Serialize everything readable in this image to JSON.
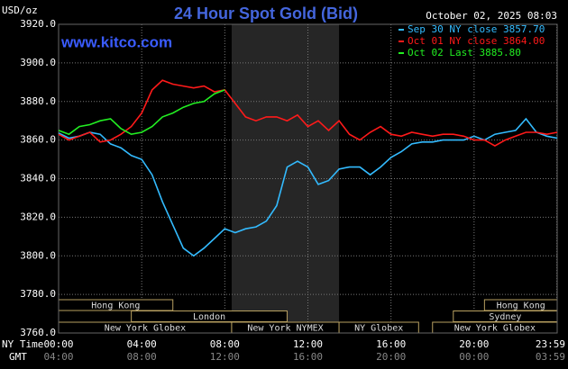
{
  "chart_data": {
    "type": "line",
    "title": "24 Hour Spot Gold (Bid)",
    "y_label": "USD/oz",
    "timestamp": "October 02, 2025 08:03",
    "site": "www.kitco.com",
    "ylim": [
      3760,
      3920
    ],
    "yticks": [
      {
        "value": 3760,
        "label": "3760.0"
      },
      {
        "value": 3780,
        "label": "3780.0"
      },
      {
        "value": 3800,
        "label": "3800.0"
      },
      {
        "value": 3820,
        "label": "3820.0"
      },
      {
        "value": 3840,
        "label": "3840.0"
      },
      {
        "value": 3860,
        "label": "3860.0"
      },
      {
        "value": 3880,
        "label": "3880.0"
      },
      {
        "value": 3900,
        "label": "3900.0"
      },
      {
        "value": 3920,
        "label": "3920.0"
      }
    ],
    "xlim": [
      0,
      24
    ],
    "x_row_label": "NY Time",
    "xticks": [
      {
        "value": 0,
        "label": "00:00"
      },
      {
        "value": 4,
        "label": "04:00"
      },
      {
        "value": 8,
        "label": "08:00"
      },
      {
        "value": 12,
        "label": "12:00"
      },
      {
        "value": 16,
        "label": "16:00"
      },
      {
        "value": 20,
        "label": "20:00"
      },
      {
        "value": 23.983,
        "label": "23:59"
      }
    ],
    "x2_row_label": "GMT",
    "x2ticks": [
      {
        "value": 0,
        "label": "04:00"
      },
      {
        "value": 4,
        "label": "08:00"
      },
      {
        "value": 8,
        "label": "12:00"
      },
      {
        "value": 12,
        "label": "16:00"
      },
      {
        "value": 16,
        "label": "20:00"
      },
      {
        "value": 20,
        "label": "00:00"
      },
      {
        "value": 23.983,
        "label": "03:59"
      }
    ],
    "grid": true,
    "series": [
      {
        "name": "Sep 30 NY close 3857.70",
        "color": "#33bbff",
        "x": [
          0,
          0.5,
          1,
          1.5,
          2,
          2.5,
          3,
          3.5,
          4,
          4.5,
          5,
          5.5,
          6,
          6.5,
          7,
          7.5,
          8,
          8.5,
          9,
          9.5,
          10,
          10.5,
          11,
          11.5,
          12,
          12.5,
          13,
          13.5,
          14,
          14.5,
          15,
          15.5,
          16,
          16.5,
          17,
          17.5,
          18,
          18.5,
          19,
          19.5,
          20,
          20.5,
          21,
          21.5,
          22,
          22.5,
          23,
          23.5,
          24
        ],
        "values": [
          3863.6,
          3861,
          3862,
          3864,
          3863,
          3858,
          3856,
          3852,
          3850,
          3842,
          3828,
          3816,
          3804,
          3800,
          3804,
          3809,
          3814,
          3812,
          3814,
          3815,
          3818,
          3826,
          3846,
          3849,
          3846,
          3837,
          3839,
          3845,
          3846,
          3846,
          3842,
          3846,
          3851,
          3854,
          3858,
          3859,
          3859,
          3860,
          3860,
          3860,
          3862,
          3860,
          3863,
          3864,
          3865,
          3871,
          3864,
          3862,
          3861
        ]
      },
      {
        "name": "Oct 01 NY close 3864.00",
        "color": "#ff1a1a",
        "x": [
          0,
          0.5,
          1,
          1.5,
          2,
          2.5,
          3,
          3.5,
          4,
          4.5,
          5,
          5.5,
          6,
          6.5,
          7,
          7.5,
          8,
          8.5,
          9,
          9.5,
          10,
          10.5,
          11,
          11.5,
          12,
          12.5,
          13,
          13.5,
          14,
          14.5,
          15,
          15.5,
          16,
          16.5,
          17,
          17.5,
          18,
          18.5,
          19,
          19.5,
          20,
          20.5,
          21,
          21.5,
          22,
          22.5,
          23,
          23.5,
          24
        ],
        "values": [
          3863,
          3860,
          3862,
          3864,
          3859,
          3860,
          3863,
          3867,
          3874,
          3886,
          3891,
          3889,
          3888,
          3887,
          3888,
          3885,
          3886,
          3879,
          3872,
          3870,
          3872,
          3872,
          3870,
          3873,
          3867,
          3870,
          3865,
          3870,
          3863,
          3860,
          3864,
          3867,
          3863,
          3862,
          3864,
          3863,
          3862,
          3863,
          3863,
          3862,
          3860,
          3860,
          3857,
          3860,
          3862,
          3864,
          3864,
          3863,
          3864
        ]
      },
      {
        "name": "Oct 02 Last 3885.80",
        "color": "#22ee22",
        "x": [
          0,
          0.5,
          1,
          1.5,
          2,
          2.5,
          3,
          3.5,
          4,
          4.5,
          5,
          5.5,
          6,
          6.5,
          7,
          7.5,
          8
        ],
        "values": [
          3865,
          3863,
          3867,
          3868,
          3870,
          3871,
          3866,
          3863,
          3864,
          3867,
          3872,
          3874,
          3877,
          3879,
          3880,
          3884,
          3886
        ]
      }
    ],
    "sessions": [
      {
        "label": "Hong Kong",
        "row": 0,
        "start": 0,
        "end": 5.5
      },
      {
        "label": "London",
        "row": 1,
        "start": 3.5,
        "end": 11
      },
      {
        "label": "New York Globex",
        "row": 2,
        "start": 0,
        "end": 8.33
      },
      {
        "label": "New York NYMEX",
        "row": 2,
        "start": 8.33,
        "end": 13.5,
        "shaded": true
      },
      {
        "label": "NY Globex",
        "row": 2,
        "start": 13.5,
        "end": 17.33
      },
      {
        "label": "New York Globex",
        "row": 2,
        "start": 18,
        "end": 24
      },
      {
        "label": "Sydney",
        "row": 1,
        "start": 19,
        "end": 24
      },
      {
        "label": "Hong Kong",
        "row": 0,
        "start": 20.5,
        "end": 24
      }
    ]
  }
}
